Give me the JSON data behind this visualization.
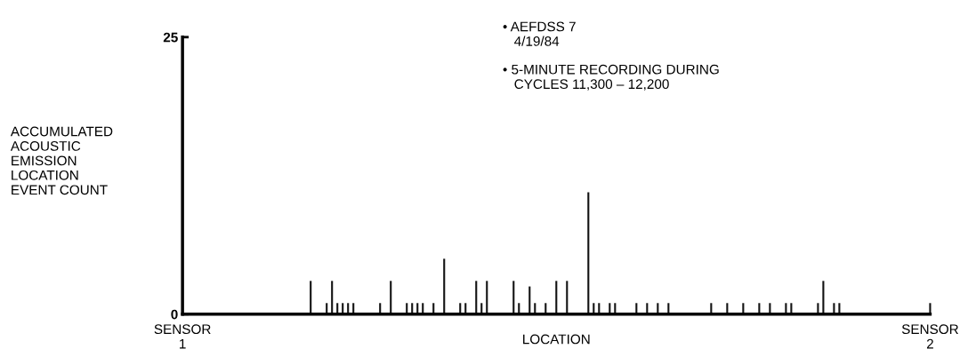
{
  "chart_data": {
    "type": "bar",
    "xlabel": "LOCATION",
    "ylabel": "ACCUMULATED\nACOUSTIC\nEMISSION\nLOCATION\nEVENT COUNT",
    "annotations": [
      "• AEFDSS 7\n   4/19/84",
      "• 5-MINUTE RECORDING DURING\n   CYCLES 11,300 – 12,200"
    ],
    "categories": [
      "SENSOR\n1",
      null,
      null,
      null,
      null,
      null,
      null,
      null,
      null,
      null,
      null,
      null,
      null,
      null,
      null,
      null,
      null,
      null,
      null,
      null,
      null,
      null,
      null,
      null,
      null,
      null,
      null,
      null,
      null,
      null,
      null,
      null,
      null,
      null,
      null,
      null,
      null,
      null,
      null,
      null,
      null,
      null,
      null,
      null,
      null,
      null,
      null,
      null,
      null,
      null,
      null,
      null,
      null,
      null,
      null,
      null,
      null,
      null,
      null,
      null,
      null,
      null,
      null,
      null,
      null,
      null,
      null,
      null,
      null,
      null,
      null,
      null,
      null,
      null,
      null,
      null,
      null,
      null,
      null,
      null,
      null,
      null,
      null,
      null,
      null,
      null,
      null,
      null,
      null,
      null,
      null,
      null,
      null,
      null,
      null,
      null,
      null,
      null,
      null,
      null,
      null,
      null,
      null,
      null,
      null,
      null,
      null,
      null,
      null,
      null,
      null,
      null,
      null,
      null,
      null,
      null,
      null,
      null,
      null,
      null,
      null,
      null,
      null,
      null,
      null,
      null,
      null,
      null,
      null,
      null,
      null,
      null,
      null,
      null,
      null,
      null,
      null,
      null,
      null,
      null,
      "SENSOR\n2"
    ],
    "series": [
      {
        "color": "#111111",
        "values": [
          null,
          null,
          null,
          null,
          null,
          null,
          null,
          null,
          null,
          null,
          null,
          null,
          null,
          null,
          null,
          null,
          null,
          null,
          null,
          null,
          null,
          null,
          null,
          null,
          3,
          null,
          null,
          1,
          3,
          1,
          1,
          1,
          1,
          null,
          null,
          null,
          null,
          1,
          null,
          3,
          null,
          null,
          1,
          1,
          1,
          1,
          null,
          1,
          null,
          5,
          null,
          null,
          1,
          1,
          null,
          3,
          1,
          3,
          null,
          null,
          null,
          null,
          3,
          1,
          null,
          2.5,
          1,
          null,
          1,
          null,
          3,
          null,
          3,
          null,
          null,
          null,
          11,
          1,
          1,
          null,
          1,
          1,
          null,
          null,
          null,
          1,
          null,
          1,
          null,
          1,
          null,
          1,
          null,
          null,
          null,
          null,
          null,
          null,
          null,
          1,
          null,
          null,
          1,
          null,
          null,
          1,
          null,
          null,
          1,
          null,
          1,
          null,
          null,
          1,
          1,
          null,
          null,
          null,
          null,
          1,
          3,
          null,
          1,
          1,
          null,
          null,
          null,
          null,
          null,
          null,
          null,
          null,
          null,
          null,
          null,
          null,
          null,
          null,
          null,
          null,
          1
        ]
      }
    ],
    "ylim": [
      0,
      25
    ],
    "yticks": [
      0,
      25
    ],
    "grid": false,
    "legend": false
  }
}
